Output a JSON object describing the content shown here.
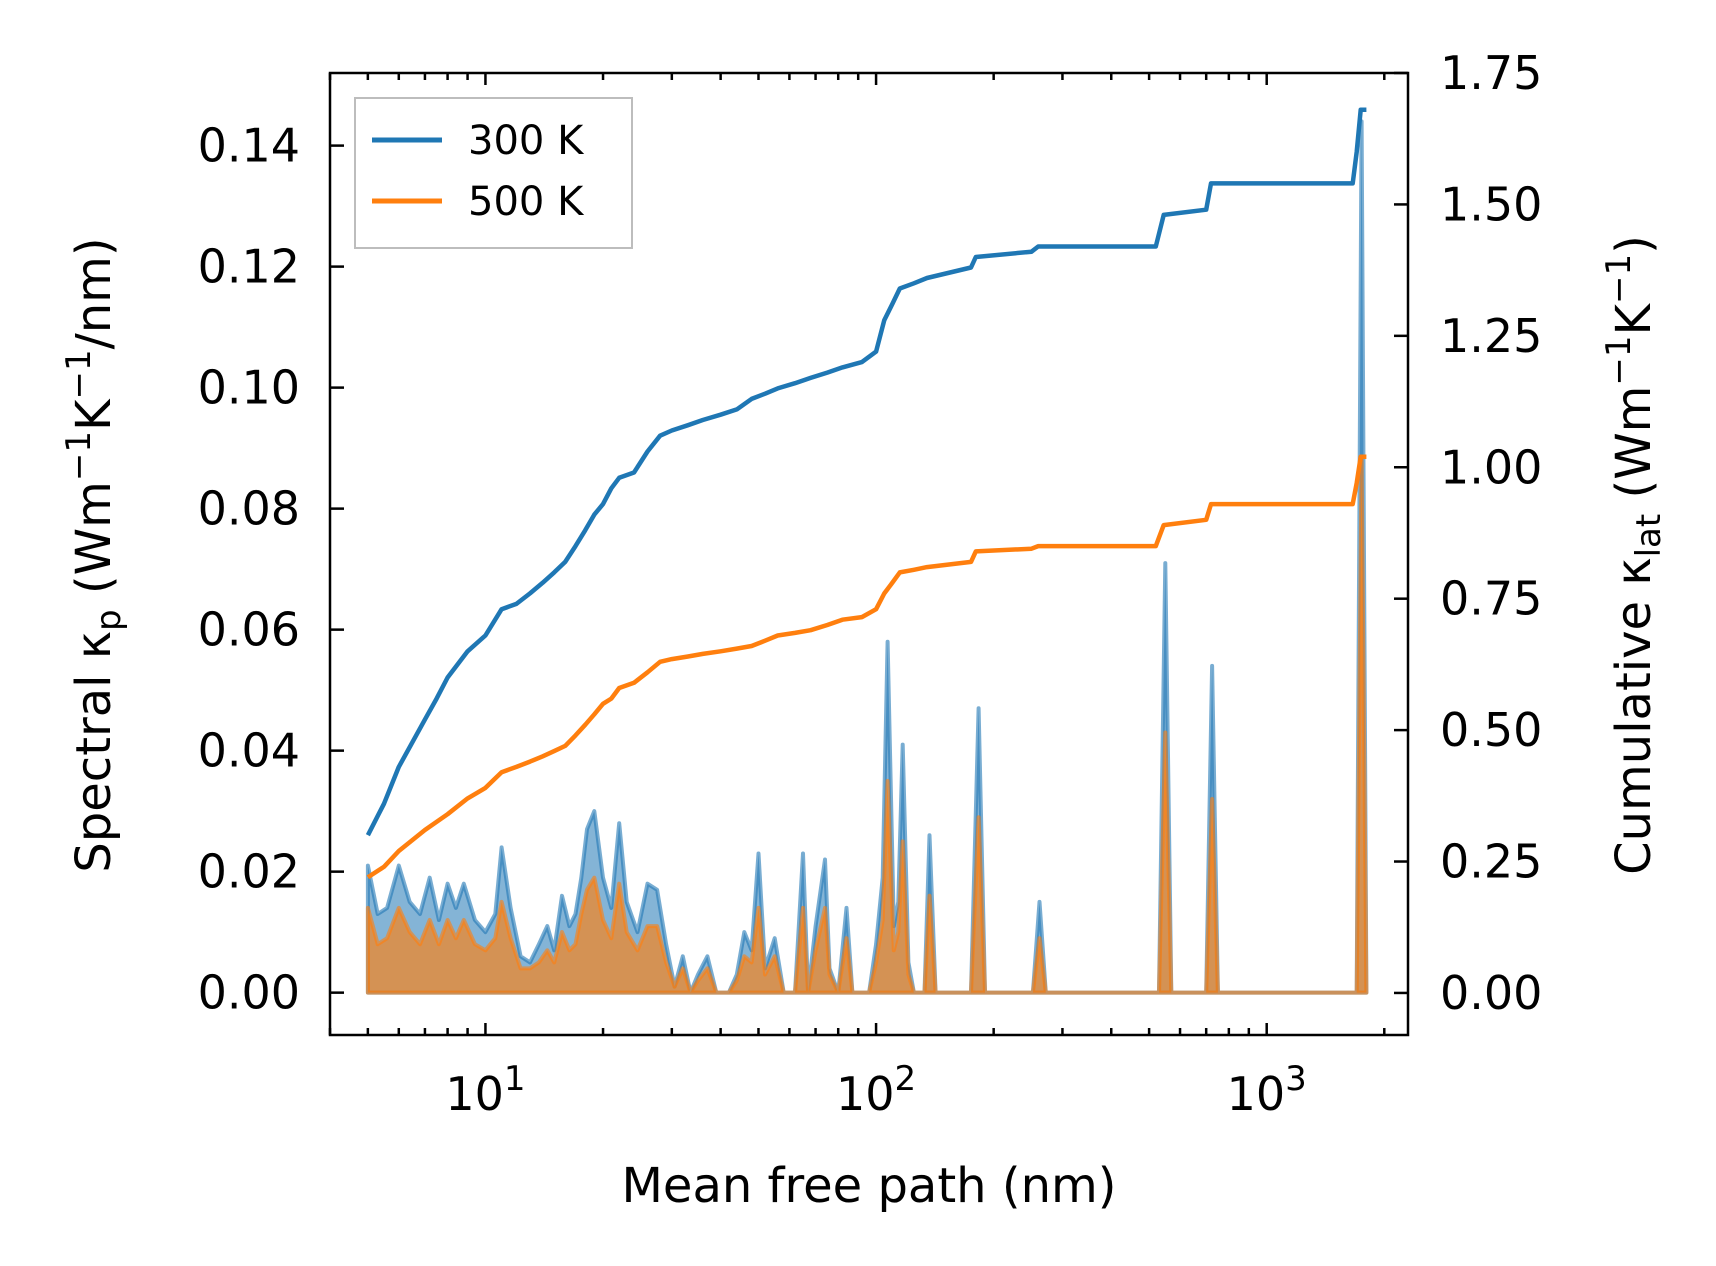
{
  "chart_data": {
    "type": "line",
    "title": "",
    "xlabel": "Mean free path (nm)",
    "xscale": "log",
    "xlim": [
      4,
      2300
    ],
    "x_ticks": [
      {
        "value": 10,
        "label_base": "10",
        "label_exp": "1"
      },
      {
        "value": 100,
        "label_base": "10",
        "label_exp": "2"
      },
      {
        "value": 1000,
        "label_base": "10",
        "label_exp": "3"
      }
    ],
    "y_left": {
      "label_prefix": "Spectral κ",
      "label_sub": "p",
      "label_open": " (Wm",
      "label_sup1": "−1",
      "label_mid": "K",
      "label_sup2": "−1",
      "label_close": "/nm)",
      "lim": [
        -0.007,
        0.152
      ],
      "ticks": [
        "0.00",
        "0.02",
        "0.04",
        "0.06",
        "0.08",
        "0.10",
        "0.12",
        "0.14"
      ],
      "tick_values": [
        0,
        0.02,
        0.04,
        0.06,
        0.08,
        0.1,
        0.12,
        0.14
      ]
    },
    "y_right": {
      "label_prefix": "Cumulative κ",
      "label_sub": "lat",
      "label_open": " (Wm",
      "label_sup1": "−1",
      "label_mid": "K",
      "label_sup2": "−1",
      "label_close": ")",
      "lim": [
        -0.08,
        1.75
      ],
      "ticks": [
        "0.00",
        "0.25",
        "0.50",
        "0.75",
        "1.00",
        "1.25",
        "1.50",
        "1.75"
      ],
      "tick_values": [
        0,
        0.25,
        0.5,
        0.75,
        1.0,
        1.25,
        1.5,
        1.75
      ]
    },
    "legend": {
      "placement": "top-left",
      "entries": [
        {
          "label": "300 K",
          "color": "#1f77b4"
        },
        {
          "label": "500 K",
          "color": "#ff7f0e"
        }
      ]
    },
    "series": [
      {
        "name": "300 K",
        "color": "#1f77b4",
        "spectral": [
          [
            5.0,
            0.0
          ],
          [
            5.0,
            0.021
          ],
          [
            5.3,
            0.013
          ],
          [
            5.6,
            0.014
          ],
          [
            6.0,
            0.021
          ],
          [
            6.4,
            0.015
          ],
          [
            6.8,
            0.013
          ],
          [
            7.2,
            0.019
          ],
          [
            7.6,
            0.012
          ],
          [
            8.0,
            0.018
          ],
          [
            8.4,
            0.014
          ],
          [
            8.8,
            0.018
          ],
          [
            9.4,
            0.012
          ],
          [
            10.0,
            0.01
          ],
          [
            10.6,
            0.013
          ],
          [
            11.0,
            0.024
          ],
          [
            11.6,
            0.014
          ],
          [
            12.3,
            0.006
          ],
          [
            13.0,
            0.005
          ],
          [
            13.7,
            0.008
          ],
          [
            14.4,
            0.011
          ],
          [
            15.0,
            0.007
          ],
          [
            15.7,
            0.016
          ],
          [
            16.4,
            0.011
          ],
          [
            17.0,
            0.013
          ],
          [
            17.6,
            0.019
          ],
          [
            18.2,
            0.027
          ],
          [
            19.0,
            0.03
          ],
          [
            20.0,
            0.019
          ],
          [
            21.0,
            0.014
          ],
          [
            22.0,
            0.028
          ],
          [
            23.0,
            0.015
          ],
          [
            24.5,
            0.01
          ],
          [
            26.0,
            0.018
          ],
          [
            27.5,
            0.017
          ],
          [
            29.0,
            0.008
          ],
          [
            30.5,
            0.001
          ],
          [
            32.0,
            0.006
          ],
          [
            33.5,
            0.0
          ],
          [
            35.0,
            0.003
          ],
          [
            37.0,
            0.006
          ],
          [
            39.0,
            0.0
          ],
          [
            42.0,
            0.0
          ],
          [
            44.0,
            0.003
          ],
          [
            46.0,
            0.01
          ],
          [
            48.0,
            0.007
          ],
          [
            50.0,
            0.023
          ],
          [
            52.0,
            0.004
          ],
          [
            55.0,
            0.009
          ],
          [
            58.0,
            0.0
          ],
          [
            62.0,
            0.0
          ],
          [
            65.0,
            0.023
          ],
          [
            67.0,
            0.0
          ],
          [
            70.0,
            0.011
          ],
          [
            74.0,
            0.022
          ],
          [
            76.0,
            0.004
          ],
          [
            80.0,
            0.0
          ],
          [
            84.0,
            0.014
          ],
          [
            87.0,
            0.0
          ],
          [
            96.0,
            0.0
          ],
          [
            100.0,
            0.008
          ],
          [
            104.0,
            0.019
          ],
          [
            107.0,
            0.058
          ],
          [
            111.0,
            0.011
          ],
          [
            114.0,
            0.015
          ],
          [
            117.0,
            0.041
          ],
          [
            121.0,
            0.005
          ],
          [
            125.0,
            0.0
          ],
          [
            133.0,
            0.0
          ],
          [
            137.0,
            0.026
          ],
          [
            142.0,
            0.0
          ],
          [
            175.0,
            0.0
          ],
          [
            183.0,
            0.047
          ],
          [
            190.0,
            0.0
          ],
          [
            252.0,
            0.0
          ],
          [
            262.0,
            0.015
          ],
          [
            272.0,
            0.0
          ],
          [
            530.0,
            0.0
          ],
          [
            550.0,
            0.071
          ],
          [
            570.0,
            0.0
          ],
          [
            700.0,
            0.0
          ],
          [
            725.0,
            0.054
          ],
          [
            750.0,
            0.0
          ],
          [
            1700.0,
            0.0
          ],
          [
            1750.0,
            0.144
          ],
          [
            1800.0,
            0.0
          ]
        ],
        "cumulative": [
          [
            5.0,
            0.3
          ],
          [
            5.5,
            0.36
          ],
          [
            6.0,
            0.43
          ],
          [
            7.0,
            0.52
          ],
          [
            7.5,
            0.56
          ],
          [
            8.0,
            0.6
          ],
          [
            9.0,
            0.65
          ],
          [
            10.0,
            0.68
          ],
          [
            11.0,
            0.73
          ],
          [
            12.0,
            0.74
          ],
          [
            13.0,
            0.76
          ],
          [
            14.0,
            0.78
          ],
          [
            15.0,
            0.8
          ],
          [
            16.0,
            0.82
          ],
          [
            17.0,
            0.85
          ],
          [
            18.0,
            0.88
          ],
          [
            19.0,
            0.91
          ],
          [
            20.0,
            0.93
          ],
          [
            21.0,
            0.96
          ],
          [
            22.0,
            0.98
          ],
          [
            24.0,
            0.99
          ],
          [
            26.0,
            1.03
          ],
          [
            28.0,
            1.06
          ],
          [
            30.0,
            1.07
          ],
          [
            33.0,
            1.08
          ],
          [
            36.0,
            1.09
          ],
          [
            40.0,
            1.1
          ],
          [
            44.0,
            1.11
          ],
          [
            48.0,
            1.13
          ],
          [
            52.0,
            1.14
          ],
          [
            56.0,
            1.15
          ],
          [
            62.0,
            1.16
          ],
          [
            68.0,
            1.17
          ],
          [
            75.0,
            1.18
          ],
          [
            82.0,
            1.19
          ],
          [
            92.0,
            1.2
          ],
          [
            100.0,
            1.22
          ],
          [
            105.0,
            1.28
          ],
          [
            110.0,
            1.31
          ],
          [
            115.0,
            1.34
          ],
          [
            125.0,
            1.35
          ],
          [
            135.0,
            1.36
          ],
          [
            175.0,
            1.38
          ],
          [
            180.0,
            1.4
          ],
          [
            250.0,
            1.41
          ],
          [
            260.0,
            1.42
          ],
          [
            520.0,
            1.42
          ],
          [
            545.0,
            1.48
          ],
          [
            700.0,
            1.49
          ],
          [
            720.0,
            1.54
          ],
          [
            1660.0,
            1.54
          ],
          [
            1700.0,
            1.6
          ],
          [
            1740.0,
            1.68
          ],
          [
            1800.0,
            1.68
          ]
        ]
      },
      {
        "name": "500 K",
        "color": "#ff7f0e",
        "spectral": [
          [
            5.0,
            0.0
          ],
          [
            5.0,
            0.014
          ],
          [
            5.3,
            0.008
          ],
          [
            5.6,
            0.009
          ],
          [
            6.0,
            0.014
          ],
          [
            6.4,
            0.01
          ],
          [
            6.8,
            0.008
          ],
          [
            7.2,
            0.012
          ],
          [
            7.6,
            0.008
          ],
          [
            8.0,
            0.012
          ],
          [
            8.4,
            0.009
          ],
          [
            8.8,
            0.012
          ],
          [
            9.4,
            0.008
          ],
          [
            10.0,
            0.007
          ],
          [
            10.6,
            0.009
          ],
          [
            11.0,
            0.015
          ],
          [
            11.6,
            0.009
          ],
          [
            12.3,
            0.004
          ],
          [
            13.0,
            0.004
          ],
          [
            13.7,
            0.005
          ],
          [
            14.4,
            0.007
          ],
          [
            15.0,
            0.005
          ],
          [
            15.7,
            0.01
          ],
          [
            16.4,
            0.007
          ],
          [
            17.0,
            0.008
          ],
          [
            17.6,
            0.013
          ],
          [
            18.2,
            0.017
          ],
          [
            19.0,
            0.019
          ],
          [
            20.0,
            0.012
          ],
          [
            21.0,
            0.009
          ],
          [
            22.0,
            0.018
          ],
          [
            23.0,
            0.01
          ],
          [
            24.5,
            0.007
          ],
          [
            26.0,
            0.011
          ],
          [
            27.5,
            0.011
          ],
          [
            29.0,
            0.005
          ],
          [
            30.5,
            0.001
          ],
          [
            32.0,
            0.004
          ],
          [
            33.5,
            0.0
          ],
          [
            35.0,
            0.002
          ],
          [
            37.0,
            0.004
          ],
          [
            39.0,
            0.0
          ],
          [
            42.0,
            0.0
          ],
          [
            44.0,
            0.002
          ],
          [
            46.0,
            0.006
          ],
          [
            48.0,
            0.005
          ],
          [
            50.0,
            0.014
          ],
          [
            52.0,
            0.003
          ],
          [
            55.0,
            0.006
          ],
          [
            58.0,
            0.0
          ],
          [
            62.0,
            0.0
          ],
          [
            65.0,
            0.014
          ],
          [
            67.0,
            0.0
          ],
          [
            70.0,
            0.007
          ],
          [
            74.0,
            0.014
          ],
          [
            76.0,
            0.003
          ],
          [
            80.0,
            0.0
          ],
          [
            84.0,
            0.009
          ],
          [
            87.0,
            0.0
          ],
          [
            96.0,
            0.0
          ],
          [
            100.0,
            0.005
          ],
          [
            104.0,
            0.012
          ],
          [
            107.0,
            0.035
          ],
          [
            111.0,
            0.007
          ],
          [
            114.0,
            0.01
          ],
          [
            117.0,
            0.025
          ],
          [
            121.0,
            0.003
          ],
          [
            125.0,
            0.0
          ],
          [
            133.0,
            0.0
          ],
          [
            137.0,
            0.016
          ],
          [
            142.0,
            0.0
          ],
          [
            175.0,
            0.0
          ],
          [
            183.0,
            0.029
          ],
          [
            190.0,
            0.0
          ],
          [
            252.0,
            0.0
          ],
          [
            262.0,
            0.009
          ],
          [
            272.0,
            0.0
          ],
          [
            530.0,
            0.0
          ],
          [
            550.0,
            0.043
          ],
          [
            570.0,
            0.0
          ],
          [
            700.0,
            0.0
          ],
          [
            725.0,
            0.032
          ],
          [
            750.0,
            0.0
          ],
          [
            1700.0,
            0.0
          ],
          [
            1750.0,
            0.088
          ],
          [
            1800.0,
            0.0
          ]
        ],
        "cumulative": [
          [
            5.0,
            0.22
          ],
          [
            5.5,
            0.24
          ],
          [
            6.0,
            0.27
          ],
          [
            7.0,
            0.31
          ],
          [
            8.0,
            0.34
          ],
          [
            9.0,
            0.37
          ],
          [
            10.0,
            0.39
          ],
          [
            11.0,
            0.42
          ],
          [
            12.0,
            0.43
          ],
          [
            13.0,
            0.44
          ],
          [
            14.0,
            0.45
          ],
          [
            15.0,
            0.46
          ],
          [
            16.0,
            0.47
          ],
          [
            17.0,
            0.49
          ],
          [
            18.0,
            0.51
          ],
          [
            19.0,
            0.53
          ],
          [
            20.0,
            0.55
          ],
          [
            21.0,
            0.56
          ],
          [
            22.0,
            0.58
          ],
          [
            24.0,
            0.59
          ],
          [
            26.0,
            0.61
          ],
          [
            28.0,
            0.63
          ],
          [
            30.0,
            0.635
          ],
          [
            33.0,
            0.64
          ],
          [
            36.0,
            0.645
          ],
          [
            40.0,
            0.65
          ],
          [
            44.0,
            0.655
          ],
          [
            48.0,
            0.66
          ],
          [
            52.0,
            0.67
          ],
          [
            56.0,
            0.68
          ],
          [
            62.0,
            0.685
          ],
          [
            68.0,
            0.69
          ],
          [
            75.0,
            0.7
          ],
          [
            82.0,
            0.71
          ],
          [
            92.0,
            0.715
          ],
          [
            100.0,
            0.73
          ],
          [
            105.0,
            0.76
          ],
          [
            110.0,
            0.78
          ],
          [
            115.0,
            0.8
          ],
          [
            125.0,
            0.805
          ],
          [
            135.0,
            0.81
          ],
          [
            175.0,
            0.82
          ],
          [
            180.0,
            0.84
          ],
          [
            250.0,
            0.845
          ],
          [
            260.0,
            0.85
          ],
          [
            520.0,
            0.85
          ],
          [
            545.0,
            0.89
          ],
          [
            700.0,
            0.9
          ],
          [
            720.0,
            0.93
          ],
          [
            1660.0,
            0.93
          ],
          [
            1700.0,
            0.97
          ],
          [
            1740.0,
            1.02
          ],
          [
            1800.0,
            1.02
          ]
        ]
      }
    ]
  }
}
